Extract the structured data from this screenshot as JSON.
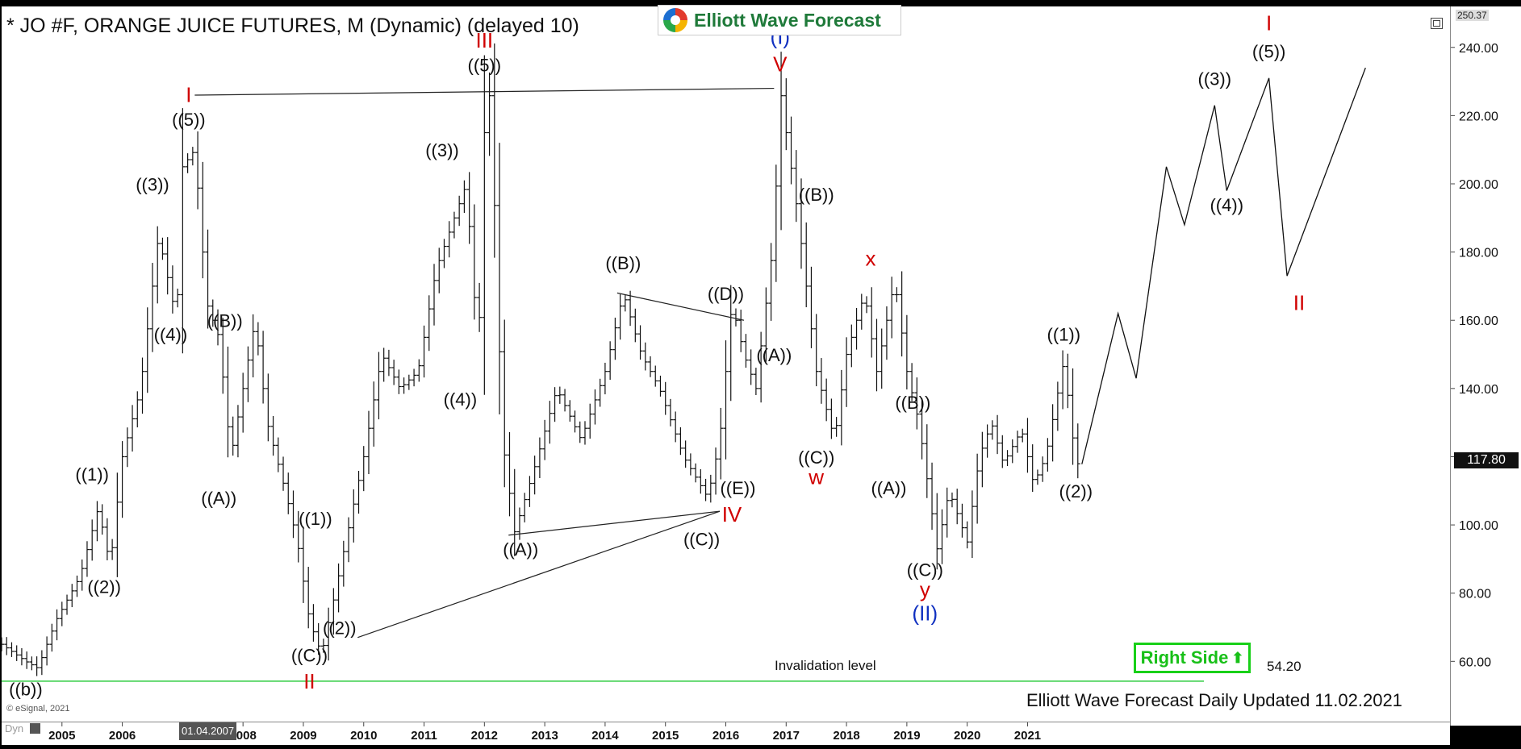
{
  "title": "* JO #F, ORANGE JUICE FUTURES, M (Dynamic) (delayed 10)",
  "logo": {
    "text": "Elliott Wave Forecast",
    "icon": "elliott-wave-logo-icon"
  },
  "maximize_icon": "maximize-icon",
  "right_side_button": {
    "label": "Right Side",
    "arrow": "⬆",
    "color": "#18d018"
  },
  "footer": "Elliott Wave Forecast Daily Updated 11.02.2021",
  "copyright": "© eSignal, 2021",
  "dyn_label": "Dyn",
  "date_badge": "01.04.2007",
  "last_price": "117.80",
  "top_price": "250.37",
  "invalidation": {
    "label": "Invalidation level",
    "value": "54.20",
    "level": 54.2,
    "color": "#2ecc40"
  },
  "chart_data": {
    "type": "bar",
    "ylim": [
      44,
      252
    ],
    "xlim": [
      2004.0,
      2028.0
    ],
    "yticks": [
      "60.00",
      "80.00",
      "100.00",
      "120.00",
      "140.00",
      "160.00",
      "180.00",
      "200.00",
      "220.00",
      "240.00"
    ],
    "ytick_values": [
      60,
      80,
      100,
      120,
      140,
      160,
      180,
      200,
      220,
      240
    ],
    "xticks": [
      "2005",
      "2006",
      "2008",
      "2009",
      "2010",
      "2011",
      "2012",
      "2013",
      "2014",
      "2015",
      "2016",
      "2017",
      "2018",
      "2019",
      "2020",
      "2021"
    ],
    "xtick_values": [
      2005,
      2006,
      2008,
      2009,
      2010,
      2011,
      2012,
      2013,
      2014,
      2015,
      2016,
      2017,
      2018,
      2019,
      2020,
      2021
    ],
    "price_path": [
      [
        2004.0,
        65
      ],
      [
        2004.4,
        60
      ],
      [
        2004.6,
        58
      ],
      [
        2004.9,
        72
      ],
      [
        2005.3,
        85
      ],
      [
        2005.6,
        105
      ],
      [
        2005.8,
        88
      ],
      [
        2006.0,
        120
      ],
      [
        2006.3,
        140
      ],
      [
        2006.6,
        185
      ],
      [
        2006.9,
        160
      ],
      [
        2007.0,
        205
      ],
      [
        2007.2,
        210
      ],
      [
        2007.4,
        165
      ],
      [
        2007.6,
        155
      ],
      [
        2007.8,
        120
      ],
      [
        2008.0,
        140
      ],
      [
        2008.2,
        160
      ],
      [
        2008.4,
        130
      ],
      [
        2008.7,
        110
      ],
      [
        2008.9,
        95
      ],
      [
        2009.1,
        72
      ],
      [
        2009.3,
        62
      ],
      [
        2009.5,
        78
      ],
      [
        2009.7,
        95
      ],
      [
        2010.0,
        120
      ],
      [
        2010.3,
        150
      ],
      [
        2010.6,
        140
      ],
      [
        2010.9,
        145
      ],
      [
        2011.2,
        175
      ],
      [
        2011.5,
        190
      ],
      [
        2011.7,
        200
      ],
      [
        2011.9,
        150
      ],
      [
        2012.0,
        215
      ],
      [
        2012.1,
        228
      ],
      [
        2012.3,
        125
      ],
      [
        2012.5,
        98
      ],
      [
        2012.8,
        115
      ],
      [
        2013.2,
        140
      ],
      [
        2013.6,
        125
      ],
      [
        2014.0,
        145
      ],
      [
        2014.3,
        168
      ],
      [
        2014.6,
        150
      ],
      [
        2014.9,
        140
      ],
      [
        2015.3,
        120
      ],
      [
        2015.7,
        108
      ],
      [
        2015.9,
        125
      ],
      [
        2016.1,
        165
      ],
      [
        2016.3,
        150
      ],
      [
        2016.5,
        140
      ],
      [
        2016.8,
        185
      ],
      [
        2016.9,
        228
      ],
      [
        2017.0,
        215
      ],
      [
        2017.2,
        190
      ],
      [
        2017.5,
        145
      ],
      [
        2017.8,
        125
      ],
      [
        2018.0,
        150
      ],
      [
        2018.3,
        168
      ],
      [
        2018.5,
        145
      ],
      [
        2018.8,
        172
      ],
      [
        2019.0,
        145
      ],
      [
        2019.2,
        130
      ],
      [
        2019.5,
        93
      ],
      [
        2019.7,
        110
      ],
      [
        2020.0,
        95
      ],
      [
        2020.2,
        120
      ],
      [
        2020.4,
        130
      ],
      [
        2020.6,
        118
      ],
      [
        2020.9,
        128
      ],
      [
        2021.1,
        112
      ],
      [
        2021.3,
        120
      ],
      [
        2021.6,
        148
      ],
      [
        2021.8,
        118
      ],
      [
        2021.9,
        117.8
      ]
    ],
    "projection": [
      [
        2021.9,
        117.8
      ],
      [
        2022.5,
        162
      ],
      [
        2022.8,
        143
      ],
      [
        2023.3,
        205
      ],
      [
        2023.6,
        188
      ],
      [
        2024.1,
        223
      ],
      [
        2024.3,
        198
      ],
      [
        2025.0,
        231
      ],
      [
        2025.3,
        173
      ],
      [
        2026.6,
        234
      ]
    ],
    "trendlines": [
      {
        "name": "top-line",
        "points": [
          [
            2007.2,
            226
          ],
          [
            2016.8,
            228
          ]
        ]
      },
      {
        "name": "triangle-upper",
        "points": [
          [
            2014.2,
            168
          ],
          [
            2016.3,
            160
          ]
        ]
      },
      {
        "name": "triangle-lower",
        "points": [
          [
            2012.4,
            97
          ],
          [
            2015.9,
            104
          ]
        ]
      },
      {
        "name": "long-support",
        "points": [
          [
            2009.9,
            67
          ],
          [
            2015.9,
            104
          ]
        ]
      }
    ],
    "labels": [
      {
        "text": "((b))",
        "x": 2004.4,
        "y": 50,
        "color": "#111"
      },
      {
        "text": "I",
        "x": 2007.1,
        "y": 224,
        "color": "#d00000"
      },
      {
        "text": "((5))",
        "x": 2007.1,
        "y": 217,
        "color": "#111"
      },
      {
        "text": "((3))",
        "x": 2006.5,
        "y": 198,
        "color": "#111"
      },
      {
        "text": "((4))",
        "x": 2006.8,
        "y": 154,
        "color": "#111"
      },
      {
        "text": "((1))",
        "x": 2005.5,
        "y": 113,
        "color": "#111"
      },
      {
        "text": "((2))",
        "x": 2005.7,
        "y": 80,
        "color": "#111"
      },
      {
        "text": "((B))",
        "x": 2007.7,
        "y": 158,
        "color": "#111"
      },
      {
        "text": "((A))",
        "x": 2007.6,
        "y": 106,
        "color": "#111"
      },
      {
        "text": "((1))",
        "x": 2009.2,
        "y": 100,
        "color": "#111"
      },
      {
        "text": "((2))",
        "x": 2009.6,
        "y": 68,
        "color": "#111"
      },
      {
        "text": "((C))",
        "x": 2009.1,
        "y": 60,
        "color": "#111"
      },
      {
        "text": "II",
        "x": 2009.1,
        "y": 52,
        "color": "#d00000"
      },
      {
        "text": "III",
        "x": 2012.0,
        "y": 240,
        "color": "#d00000"
      },
      {
        "text": "((5))",
        "x": 2012.0,
        "y": 233,
        "color": "#111"
      },
      {
        "text": "((3))",
        "x": 2011.3,
        "y": 208,
        "color": "#111"
      },
      {
        "text": "((4))",
        "x": 2011.6,
        "y": 135,
        "color": "#111"
      },
      {
        "text": "((A))",
        "x": 2012.6,
        "y": 91,
        "color": "#111"
      },
      {
        "text": "((B))",
        "x": 2014.3,
        "y": 175,
        "color": "#111"
      },
      {
        "text": "((D))",
        "x": 2016.0,
        "y": 166,
        "color": "#111"
      },
      {
        "text": "((E))",
        "x": 2016.2,
        "y": 109,
        "color": "#111"
      },
      {
        "text": "IV",
        "x": 2016.1,
        "y": 101,
        "color": "#d00000"
      },
      {
        "text": "((C))",
        "x": 2015.6,
        "y": 94,
        "color": "#111"
      },
      {
        "text": "(I)",
        "x": 2016.9,
        "y": 241,
        "color": "#1030c0"
      },
      {
        "text": "V",
        "x": 2016.9,
        "y": 233,
        "color": "#d00000"
      },
      {
        "text": "((B))",
        "x": 2017.5,
        "y": 195,
        "color": "#111"
      },
      {
        "text": "((A))",
        "x": 2016.8,
        "y": 148,
        "color": "#111"
      },
      {
        "text": "((C))",
        "x": 2017.5,
        "y": 118,
        "color": "#111"
      },
      {
        "text": "w",
        "x": 2017.5,
        "y": 112,
        "color": "#d00000"
      },
      {
        "text": "x",
        "x": 2018.4,
        "y": 176,
        "color": "#d00000"
      },
      {
        "text": "((B))",
        "x": 2019.1,
        "y": 134,
        "color": "#111"
      },
      {
        "text": "((A))",
        "x": 2018.7,
        "y": 109,
        "color": "#111"
      },
      {
        "text": "((C))",
        "x": 2019.3,
        "y": 85,
        "color": "#111"
      },
      {
        "text": "y",
        "x": 2019.3,
        "y": 79,
        "color": "#d00000"
      },
      {
        "text": "(II)",
        "x": 2019.3,
        "y": 72,
        "color": "#1030c0"
      },
      {
        "text": "((1))",
        "x": 2021.6,
        "y": 154,
        "color": "#111"
      },
      {
        "text": "((2))",
        "x": 2021.8,
        "y": 108,
        "color": "#111"
      },
      {
        "text": "((3))",
        "x": 2024.1,
        "y": 229,
        "color": "#111"
      },
      {
        "text": "((4))",
        "x": 2024.3,
        "y": 192,
        "color": "#111"
      },
      {
        "text": "I",
        "x": 2025.0,
        "y": 245,
        "color": "#d00000"
      },
      {
        "text": "((5))",
        "x": 2025.0,
        "y": 237,
        "color": "#111"
      },
      {
        "text": "II",
        "x": 2025.5,
        "y": 163,
        "color": "#d00000"
      }
    ]
  }
}
